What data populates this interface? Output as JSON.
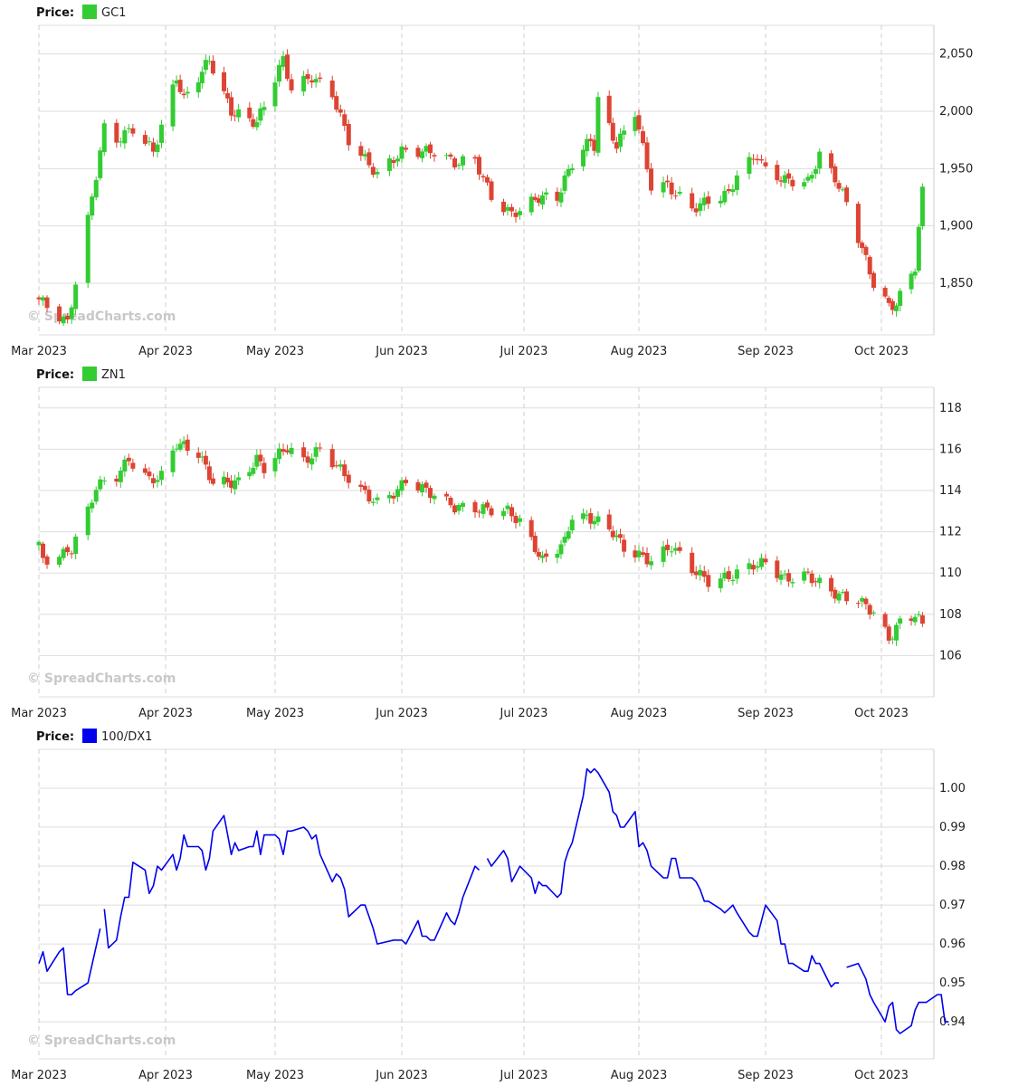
{
  "watermark": "© SpreadCharts.com",
  "colors": {
    "up": "#33cc33",
    "down": "#dd4433",
    "line": "#0000ee",
    "grid": "#dddddd"
  },
  "x_labels": [
    "Mar 2023",
    "Apr 2023",
    "May 2023",
    "Jun 2023",
    "Jul 2023",
    "Aug 2023",
    "Sep 2023",
    "Oct 2023"
  ],
  "chart_data": [
    {
      "type": "candlestick",
      "legend_title": "Price:",
      "series_name": "GC1",
      "swatch_color": "#33cc33",
      "y_ticks": [
        "2,050",
        "2,000",
        "1,950",
        "1,900",
        "1,850"
      ],
      "ylim": [
        1805,
        2075
      ],
      "x_range": [
        "2023-03-01",
        "2023-10-12"
      ],
      "anchors": [
        [
          "2023-03-01",
          1836
        ],
        [
          "2023-03-08",
          1815
        ],
        [
          "2023-03-13",
          1905
        ],
        [
          "2023-03-17",
          1985
        ],
        [
          "2023-03-20",
          1975
        ],
        [
          "2023-03-24",
          1985
        ],
        [
          "2023-03-29",
          1965
        ],
        [
          "2023-04-04",
          2030
        ],
        [
          "2023-04-06",
          2010
        ],
        [
          "2023-04-13",
          2045
        ],
        [
          "2023-04-19",
          2000
        ],
        [
          "2023-04-26",
          1990
        ],
        [
          "2023-05-03",
          2045
        ],
        [
          "2023-05-05",
          2020
        ],
        [
          "2023-05-10",
          2030
        ],
        [
          "2023-05-15",
          2015
        ],
        [
          "2023-05-19",
          1975
        ],
        [
          "2023-05-26",
          1945
        ],
        [
          "2023-06-01",
          1965
        ],
        [
          "2023-06-05",
          1965
        ],
        [
          "2023-06-09",
          1965
        ],
        [
          "2023-06-14",
          1955
        ],
        [
          "2023-06-19",
          1958
        ],
        [
          "2023-06-23",
          1925
        ],
        [
          "2023-06-28",
          1910
        ],
        [
          "2023-07-05",
          1925
        ],
        [
          "2023-07-10",
          1925
        ],
        [
          "2023-07-14",
          1955
        ],
        [
          "2023-07-19",
          1975
        ],
        [
          "2023-07-20",
          1970
        ],
        [
          "2023-07-21",
          2010
        ],
        [
          "2023-07-26",
          1970
        ],
        [
          "2023-07-31",
          2000
        ],
        [
          "2023-08-04",
          1935
        ],
        [
          "2023-08-08",
          1935
        ],
        [
          "2023-08-14",
          1915
        ],
        [
          "2023-08-18",
          1922
        ],
        [
          "2023-08-23",
          1928
        ],
        [
          "2023-08-25",
          1945
        ],
        [
          "2023-08-30",
          1962
        ],
        [
          "2023-09-01",
          1948
        ],
        [
          "2023-09-06",
          1940
        ],
        [
          "2023-09-12",
          1938
        ],
        [
          "2023-09-15",
          1962
        ],
        [
          "2023-09-19",
          1942
        ],
        [
          "2023-09-22",
          1920
        ],
        [
          "2023-09-26",
          1880
        ],
        [
          "2023-09-29",
          1850
        ],
        [
          "2023-10-03",
          1830
        ],
        [
          "2023-10-05",
          1832
        ],
        [
          "2023-10-10",
          1865
        ],
        [
          "2023-10-12",
          1930
        ]
      ]
    },
    {
      "type": "candlestick",
      "legend_title": "Price:",
      "series_name": "ZN1",
      "swatch_color": "#33cc33",
      "y_ticks": [
        "118",
        "116",
        "114",
        "112",
        "110",
        "108",
        "106"
      ],
      "ylim": [
        104,
        119
      ],
      "x_range": [
        "2023-03-01",
        "2023-10-12"
      ],
      "anchors": [
        [
          "2023-03-01",
          111.3
        ],
        [
          "2023-03-02",
          110.6
        ],
        [
          "2023-03-07",
          110.9
        ],
        [
          "2023-03-09",
          111.2
        ],
        [
          "2023-03-13",
          113.0
        ],
        [
          "2023-03-15",
          114.2
        ],
        [
          "2023-03-20",
          114.7
        ],
        [
          "2023-03-23",
          115.5
        ],
        [
          "2023-03-28",
          114.5
        ],
        [
          "2023-03-31",
          114.7
        ],
        [
          "2023-04-04",
          116.3
        ],
        [
          "2023-04-10",
          115.8
        ],
        [
          "2023-04-14",
          114.4
        ],
        [
          "2023-04-21",
          114.4
        ],
        [
          "2023-04-26",
          115.5
        ],
        [
          "2023-04-28",
          115.1
        ],
        [
          "2023-05-04",
          116.1
        ],
        [
          "2023-05-08",
          115.4
        ],
        [
          "2023-05-12",
          116.0
        ],
        [
          "2023-05-17",
          115.0
        ],
        [
          "2023-05-22",
          114.0
        ],
        [
          "2023-05-26",
          113.4
        ],
        [
          "2023-05-31",
          114.0
        ],
        [
          "2023-06-02",
          114.5
        ],
        [
          "2023-06-09",
          113.8
        ],
        [
          "2023-06-14",
          113.2
        ],
        [
          "2023-06-21",
          113.1
        ],
        [
          "2023-06-27",
          113.0
        ],
        [
          "2023-06-30",
          112.5
        ],
        [
          "2023-07-06",
          110.6
        ],
        [
          "2023-07-12",
          111.5
        ],
        [
          "2023-07-14",
          112.8
        ],
        [
          "2023-07-20",
          112.6
        ],
        [
          "2023-07-25",
          112.0
        ],
        [
          "2023-07-28",
          111.2
        ],
        [
          "2023-08-04",
          110.6
        ],
        [
          "2023-08-09",
          111.3
        ],
        [
          "2023-08-14",
          110.2
        ],
        [
          "2023-08-18",
          109.6
        ],
        [
          "2023-08-23",
          109.8
        ],
        [
          "2023-08-29",
          110.4
        ],
        [
          "2023-09-01",
          110.5
        ],
        [
          "2023-09-06",
          109.7
        ],
        [
          "2023-09-12",
          109.9
        ],
        [
          "2023-09-15",
          109.5
        ],
        [
          "2023-09-20",
          108.9
        ],
        [
          "2023-09-25",
          108.7
        ],
        [
          "2023-09-29",
          108.1
        ],
        [
          "2023-10-03",
          106.8
        ],
        [
          "2023-10-06",
          107.6
        ],
        [
          "2023-10-10",
          108.0
        ],
        [
          "2023-10-12",
          107.5
        ]
      ]
    },
    {
      "type": "line",
      "legend_title": "Price:",
      "series_name": "100/DX1",
      "swatch_color": "#0000ee",
      "y_ticks": [
        "1.00",
        "0.99",
        "0.98",
        "0.97",
        "0.96",
        "0.95",
        "0.94"
      ],
      "ylim": [
        0.9305,
        1.01
      ],
      "x_range": [
        "2023-03-01",
        "2023-10-12"
      ],
      "segments": [
        [
          [
            "2023-03-01",
            0.955
          ],
          [
            "2023-03-02",
            0.958
          ],
          [
            "2023-03-03",
            0.953
          ],
          [
            "2023-03-06",
            0.958
          ],
          [
            "2023-03-07",
            0.959
          ],
          [
            "2023-03-08",
            0.947
          ],
          [
            "2023-03-09",
            0.947
          ],
          [
            "2023-03-10",
            0.948
          ],
          [
            "2023-03-13",
            0.95
          ],
          [
            "2023-03-16",
            0.964
          ]
        ],
        [
          [
            "2023-03-17",
            0.969
          ],
          [
            "2023-03-18",
            0.959
          ],
          [
            "2023-03-20",
            0.961
          ],
          [
            "2023-03-21",
            0.967
          ],
          [
            "2023-03-22",
            0.972
          ],
          [
            "2023-03-23",
            0.972
          ],
          [
            "2023-03-24",
            0.981
          ],
          [
            "2023-03-27",
            0.979
          ],
          [
            "2023-03-28",
            0.973
          ],
          [
            "2023-03-29",
            0.975
          ],
          [
            "2023-03-30",
            0.98
          ],
          [
            "2023-03-31",
            0.979
          ],
          [
            "2023-04-03",
            0.983
          ],
          [
            "2023-04-04",
            0.979
          ],
          [
            "2023-04-05",
            0.982
          ],
          [
            "2023-04-06",
            0.988
          ],
          [
            "2023-04-07",
            0.985
          ],
          [
            "2023-04-10",
            0.985
          ],
          [
            "2023-04-11",
            0.984
          ],
          [
            "2023-04-12",
            0.979
          ],
          [
            "2023-04-13",
            0.982
          ],
          [
            "2023-04-14",
            0.989
          ],
          [
            "2023-04-17",
            0.993
          ],
          [
            "2023-04-18",
            0.988
          ],
          [
            "2023-04-19",
            0.983
          ],
          [
            "2023-04-20",
            0.986
          ],
          [
            "2023-04-21",
            0.984
          ],
          [
            "2023-04-24",
            0.985
          ],
          [
            "2023-04-25",
            0.985
          ],
          [
            "2023-04-26",
            0.989
          ],
          [
            "2023-04-27",
            0.983
          ],
          [
            "2023-04-28",
            0.988
          ],
          [
            "2023-05-01",
            0.988
          ],
          [
            "2023-05-02",
            0.987
          ],
          [
            "2023-05-03",
            0.983
          ],
          [
            "2023-05-04",
            0.989
          ],
          [
            "2023-05-05",
            0.989
          ],
          [
            "2023-05-08",
            0.99
          ],
          [
            "2023-05-09",
            0.989
          ],
          [
            "2023-05-10",
            0.987
          ],
          [
            "2023-05-11",
            0.988
          ],
          [
            "2023-05-12",
            0.983
          ],
          [
            "2023-05-15",
            0.976
          ],
          [
            "2023-05-16",
            0.978
          ],
          [
            "2023-05-17",
            0.977
          ],
          [
            "2023-05-18",
            0.974
          ],
          [
            "2023-05-19",
            0.967
          ],
          [
            "2023-05-22",
            0.97
          ],
          [
            "2023-05-23",
            0.97
          ],
          [
            "2023-05-24",
            0.967
          ],
          [
            "2023-05-25",
            0.964
          ],
          [
            "2023-05-26",
            0.96
          ],
          [
            "2023-05-30",
            0.961
          ],
          [
            "2023-05-31",
            0.961
          ],
          [
            "2023-06-01",
            0.961
          ],
          [
            "2023-06-02",
            0.96
          ],
          [
            "2023-06-05",
            0.966
          ],
          [
            "2023-06-06",
            0.962
          ],
          [
            "2023-06-07",
            0.962
          ],
          [
            "2023-06-08",
            0.961
          ],
          [
            "2023-06-09",
            0.961
          ],
          [
            "2023-06-12",
            0.968
          ],
          [
            "2023-06-13",
            0.966
          ],
          [
            "2023-06-14",
            0.965
          ],
          [
            "2023-06-15",
            0.968
          ],
          [
            "2023-06-16",
            0.972
          ],
          [
            "2023-06-19",
            0.98
          ],
          [
            "2023-06-20",
            0.979
          ]
        ],
        [
          [
            "2023-06-22",
            0.982
          ],
          [
            "2023-06-23",
            0.98
          ],
          [
            "2023-06-26",
            0.984
          ],
          [
            "2023-06-27",
            0.982
          ],
          [
            "2023-06-28",
            0.976
          ],
          [
            "2023-06-29",
            0.978
          ],
          [
            "2023-06-30",
            0.98
          ],
          [
            "2023-07-03",
            0.977
          ],
          [
            "2023-07-04",
            0.973
          ],
          [
            "2023-07-05",
            0.976
          ],
          [
            "2023-07-06",
            0.975
          ],
          [
            "2023-07-07",
            0.975
          ],
          [
            "2023-07-10",
            0.972
          ],
          [
            "2023-07-11",
            0.973
          ],
          [
            "2023-07-12",
            0.981
          ],
          [
            "2023-07-13",
            0.984
          ],
          [
            "2023-07-14",
            0.986
          ],
          [
            "2023-07-17",
            0.998
          ],
          [
            "2023-07-18",
            1.005
          ],
          [
            "2023-07-19",
            1.004
          ],
          [
            "2023-07-20",
            1.005
          ],
          [
            "2023-07-21",
            1.004
          ],
          [
            "2023-07-24",
            0.999
          ],
          [
            "2023-07-25",
            0.994
          ],
          [
            "2023-07-26",
            0.993
          ],
          [
            "2023-07-27",
            0.99
          ],
          [
            "2023-07-28",
            0.99
          ],
          [
            "2023-07-31",
            0.994
          ],
          [
            "2023-08-01",
            0.985
          ],
          [
            "2023-08-02",
            0.986
          ],
          [
            "2023-08-03",
            0.984
          ],
          [
            "2023-08-04",
            0.98
          ],
          [
            "2023-08-07",
            0.977
          ],
          [
            "2023-08-08",
            0.977
          ],
          [
            "2023-08-09",
            0.982
          ],
          [
            "2023-08-10",
            0.982
          ],
          [
            "2023-08-11",
            0.977
          ],
          [
            "2023-08-14",
            0.977
          ],
          [
            "2023-08-15",
            0.976
          ],
          [
            "2023-08-16",
            0.974
          ],
          [
            "2023-08-17",
            0.971
          ],
          [
            "2023-08-18",
            0.971
          ],
          [
            "2023-08-21",
            0.969
          ],
          [
            "2023-08-22",
            0.968
          ],
          [
            "2023-08-23",
            0.969
          ],
          [
            "2023-08-24",
            0.97
          ],
          [
            "2023-08-25",
            0.968
          ],
          [
            "2023-08-28",
            0.963
          ],
          [
            "2023-08-29",
            0.962
          ],
          [
            "2023-08-30",
            0.962
          ],
          [
            "2023-08-31",
            0.966
          ],
          [
            "2023-09-01",
            0.97
          ],
          [
            "2023-09-04",
            0.966
          ],
          [
            "2023-09-05",
            0.96
          ],
          [
            "2023-09-06",
            0.96
          ],
          [
            "2023-09-07",
            0.955
          ],
          [
            "2023-09-08",
            0.955
          ],
          [
            "2023-09-11",
            0.953
          ],
          [
            "2023-09-12",
            0.953
          ],
          [
            "2023-09-13",
            0.957
          ],
          [
            "2023-09-14",
            0.955
          ],
          [
            "2023-09-15",
            0.955
          ],
          [
            "2023-09-18",
            0.949
          ],
          [
            "2023-09-19",
            0.95
          ],
          [
            "2023-09-20",
            0.95
          ]
        ],
        [
          [
            "2023-09-22",
            0.954
          ],
          [
            "2023-09-25",
            0.955
          ],
          [
            "2023-09-26",
            0.953
          ],
          [
            "2023-09-27",
            0.951
          ],
          [
            "2023-09-28",
            0.947
          ],
          [
            "2023-09-29",
            0.945
          ],
          [
            "2023-10-02",
            0.94
          ],
          [
            "2023-10-03",
            0.944
          ],
          [
            "2023-10-04",
            0.945
          ],
          [
            "2023-10-05",
            0.938
          ],
          [
            "2023-10-06",
            0.937
          ],
          [
            "2023-10-09",
            0.939
          ],
          [
            "2023-10-10",
            0.943
          ],
          [
            "2023-10-11",
            0.945
          ],
          [
            "2023-10-12",
            0.945
          ],
          [
            "2023-10-13",
            0.945
          ],
          [
            "2023-10-16",
            0.947
          ],
          [
            "2023-10-17",
            0.947
          ],
          [
            "2023-10-18",
            0.94
          ],
          [
            "2023-10-19",
            0.94
          ]
        ]
      ]
    }
  ]
}
